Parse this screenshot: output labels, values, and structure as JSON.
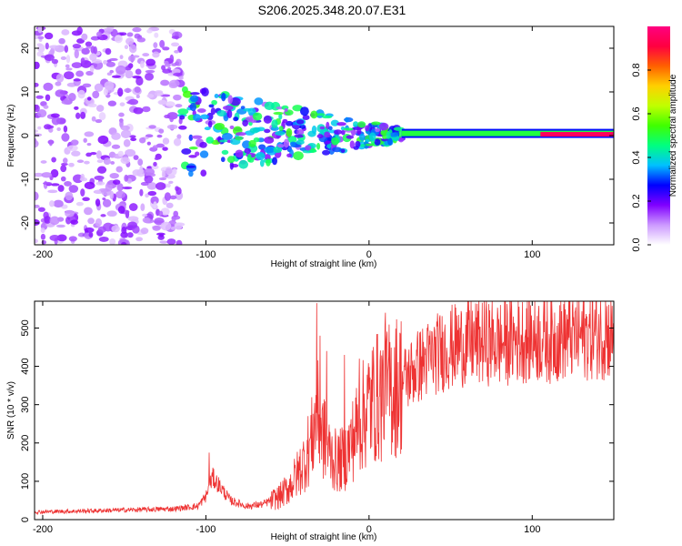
{
  "title": "S206.2025.348.20.07.E31",
  "chart_data": [
    {
      "type": "heatmap",
      "name": "spectrogram",
      "xlabel": "Height of straight line (km)",
      "ylabel": "Frequency (Hz)",
      "xlim": [
        -205,
        150
      ],
      "ylim": [
        -25,
        25
      ],
      "x_ticks": [
        -200,
        -100,
        0,
        100
      ],
      "y_ticks": [
        20,
        10,
        0,
        -10,
        -20
      ],
      "x_tick_labels": [
        "-200",
        "-100",
        "0",
        "100"
      ],
      "y_tick_labels": [
        "20",
        "10",
        "0",
        "-10",
        "-20"
      ],
      "grid": false,
      "colorbar": {
        "label": "Normalized spectral amplitude",
        "range": [
          0,
          1
        ],
        "ticks": [
          0.0,
          0.2,
          0.4,
          0.6,
          0.8
        ],
        "tick_labels": [
          "0.0",
          "0.2",
          "0.4",
          "0.6",
          "0.8"
        ],
        "colors": [
          "#ffffff",
          "#cc99ff",
          "#8000ff",
          "#0000ff",
          "#00c0ff",
          "#00ff80",
          "#40ff00",
          "#c0ff00",
          "#ffd000",
          "#ff6000",
          "#ff0040",
          "#ff0080"
        ]
      },
      "bands": [
        {
          "name": "scattered-noise",
          "x_range": [
            -205,
            -115
          ],
          "freq_range": [
            -25,
            25
          ],
          "amplitude": 0.1
        },
        {
          "name": "transition",
          "x_range": [
            -115,
            20
          ],
          "freq_range": [
            -10,
            8
          ],
          "amplitude": 0.3
        },
        {
          "name": "coherent-line",
          "x_range": [
            20,
            150
          ],
          "freq_center": 0.5,
          "amplitude": 0.5
        },
        {
          "name": "strong-tail",
          "x_range": [
            105,
            150
          ],
          "freq_center": 0.3,
          "amplitude": 0.95
        }
      ]
    },
    {
      "type": "line",
      "name": "snr",
      "xlabel": "Height of straight line (km)",
      "ylabel": "SNR (10 * v/v)",
      "xlim": [
        -205,
        150
      ],
      "ylim": [
        0,
        570
      ],
      "x_ticks": [
        -200,
        -100,
        0,
        100
      ],
      "y_ticks": [
        0,
        100,
        200,
        300,
        400,
        500
      ],
      "x_tick_labels": [
        "-200",
        "-100",
        "0",
        "100"
      ],
      "y_tick_labels": [
        "0",
        "100",
        "200",
        "300",
        "400",
        "500"
      ],
      "grid": false,
      "series": [
        {
          "name": "SNR",
          "color": "#ee3333",
          "x": [
            -205,
            -180,
            -150,
            -120,
            -105,
            -100,
            -96,
            -92,
            -85,
            -75,
            -65,
            -55,
            -50,
            -45,
            -40,
            -35,
            -32,
            -29,
            -25,
            -20,
            -15,
            -10,
            -5,
            0,
            5,
            10,
            15,
            20,
            30,
            40,
            50,
            60,
            70,
            80,
            90,
            100,
            110,
            120,
            130,
            140,
            150
          ],
          "y": [
            20,
            22,
            25,
            28,
            35,
            60,
            110,
            90,
            50,
            35,
            40,
            60,
            80,
            110,
            150,
            210,
            280,
            230,
            180,
            150,
            160,
            210,
            260,
            300,
            320,
            330,
            345,
            360,
            400,
            430,
            450,
            460,
            465,
            460,
            470,
            475,
            470,
            480,
            480,
            485,
            480
          ],
          "spikes": [
            {
              "x": -98,
              "y": 175
            },
            {
              "x": -32,
              "y": 565
            },
            {
              "x": -30,
              "y": 480
            },
            {
              "x": -26,
              "y": 440
            },
            {
              "x": -15,
              "y": 430
            },
            {
              "x": -6,
              "y": 420
            },
            {
              "x": 10,
              "y": 540
            },
            {
              "x": 145,
              "y": 570
            }
          ],
          "noise_amplitude": 0.25
        }
      ]
    }
  ]
}
